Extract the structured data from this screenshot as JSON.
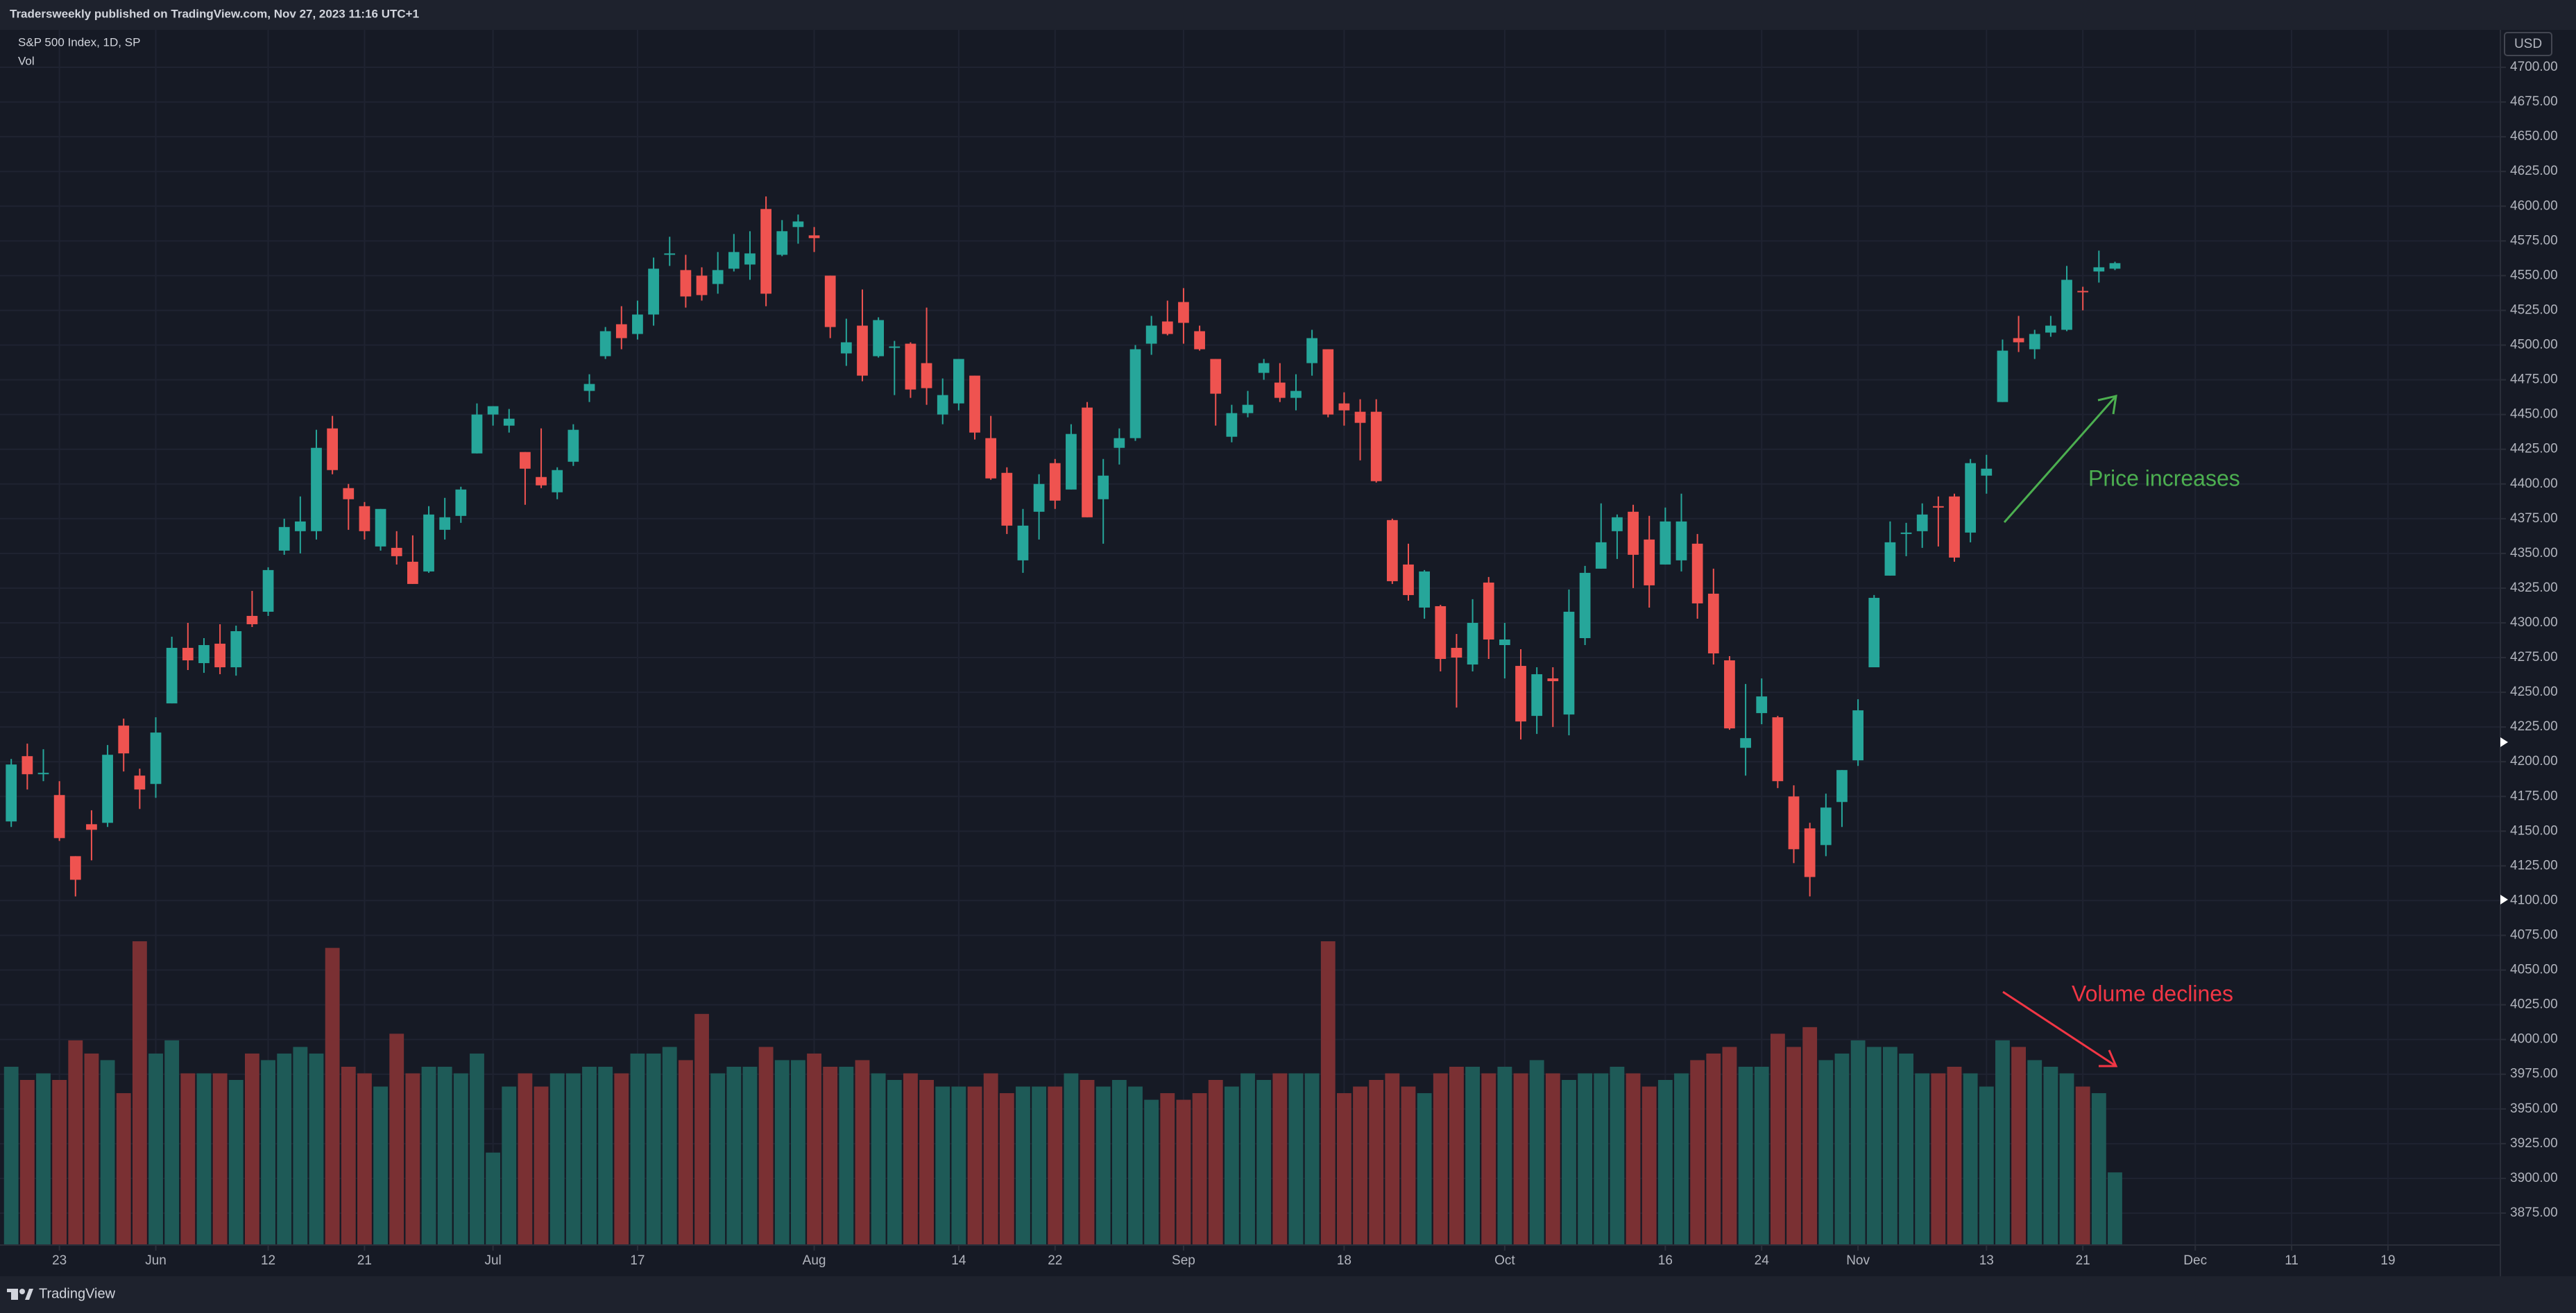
{
  "header": {
    "title": "Tradersweekly published on TradingView.com, Nov 27, 2023 11:16 UTC+1"
  },
  "legend": {
    "symbol": "S&P 500 Index, 1D, SP",
    "indicator": "Vol"
  },
  "currency": "USD",
  "footer": {
    "brand": "TradingView"
  },
  "chart_data": {
    "type": "candlestick",
    "up_color": "#26a69a",
    "down_color": "#ef5350",
    "volume_up_color": "#1e5a57",
    "volume_down_color": "#7a3033",
    "grid": true,
    "ylim": [
      3852,
      4727
    ],
    "yticks": [
      {
        "value": 3875,
        "label": "3875.00"
      },
      {
        "value": 3900,
        "label": "3900.00"
      },
      {
        "value": 3925,
        "label": "3925.00"
      },
      {
        "value": 3950,
        "label": "3950.00"
      },
      {
        "value": 3975,
        "label": "3975.00"
      },
      {
        "value": 4000,
        "label": "4000.00"
      },
      {
        "value": 4025,
        "label": "4025.00"
      },
      {
        "value": 4050,
        "label": "4050.00"
      },
      {
        "value": 4075,
        "label": "4075.00"
      },
      {
        "value": 4100,
        "label": "4100.00"
      },
      {
        "value": 4125,
        "label": "4125.00"
      },
      {
        "value": 4150,
        "label": "4150.00"
      },
      {
        "value": 4175,
        "label": "4175.00"
      },
      {
        "value": 4200,
        "label": "4200.00"
      },
      {
        "value": 4225,
        "label": "4225.00"
      },
      {
        "value": 4250,
        "label": "4250.00"
      },
      {
        "value": 4275,
        "label": "4275.00"
      },
      {
        "value": 4300,
        "label": "4300.00"
      },
      {
        "value": 4325,
        "label": "4325.00"
      },
      {
        "value": 4350,
        "label": "4350.00"
      },
      {
        "value": 4375,
        "label": "4375.00"
      },
      {
        "value": 4400,
        "label": "4400.00"
      },
      {
        "value": 4425,
        "label": "4425.00"
      },
      {
        "value": 4450,
        "label": "4450.00"
      },
      {
        "value": 4475,
        "label": "4475.00"
      },
      {
        "value": 4500,
        "label": "4500.00"
      },
      {
        "value": 4525,
        "label": "4525.00"
      },
      {
        "value": 4550,
        "label": "4550.00"
      },
      {
        "value": 4575,
        "label": "4575.00"
      },
      {
        "value": 4600,
        "label": "4600.00"
      },
      {
        "value": 4625,
        "label": "4625.00"
      },
      {
        "value": 4650,
        "label": "4650.00"
      },
      {
        "value": 4675,
        "label": "4675.00"
      },
      {
        "value": 4700,
        "label": "4700.00"
      }
    ],
    "y2lim": [
      0,
      5
    ],
    "xlim": [
      -0.7,
      155
    ],
    "xticks": [
      {
        "value": 3,
        "label": "23"
      },
      {
        "value": 9,
        "label": "Jun"
      },
      {
        "value": 16,
        "label": "12"
      },
      {
        "value": 22,
        "label": "21"
      },
      {
        "value": 30,
        "label": "Jul"
      },
      {
        "value": 39,
        "label": "17"
      },
      {
        "value": 50,
        "label": "Aug"
      },
      {
        "value": 59,
        "label": "14"
      },
      {
        "value": 65,
        "label": "22"
      },
      {
        "value": 73,
        "label": "Sep"
      },
      {
        "value": 83,
        "label": "18"
      },
      {
        "value": 93,
        "label": "Oct"
      },
      {
        "value": 103,
        "label": "16"
      },
      {
        "value": 109,
        "label": "24"
      },
      {
        "value": 115,
        "label": "Nov"
      },
      {
        "value": 123,
        "label": "13"
      },
      {
        "value": 129,
        "label": "21"
      },
      {
        "value": 136,
        "label": "Dec"
      },
      {
        "value": 142,
        "label": "11"
      },
      {
        "value": 148,
        "label": "19"
      }
    ],
    "annotations": [
      "Price increases",
      "Volume declines"
    ],
    "candles": [
      {
        "open": 4157,
        "high": 4202,
        "low": 4153,
        "close": 4198
      },
      {
        "open": 4204,
        "high": 4213,
        "low": 4180,
        "close": 4191
      },
      {
        "open": 4191,
        "high": 4209,
        "low": 4186,
        "close": 4192
      },
      {
        "open": 4176,
        "high": 4186,
        "low": 4143,
        "close": 4145
      },
      {
        "open": 4132,
        "high": 4132,
        "low": 4103,
        "close": 4115
      },
      {
        "open": 4155,
        "high": 4165,
        "low": 4129,
        "close": 4151
      },
      {
        "open": 4156,
        "high": 4212,
        "low": 4153,
        "close": 4205
      },
      {
        "open": 4226,
        "high": 4231,
        "low": 4193,
        "close": 4206
      },
      {
        "open": 4190,
        "high": 4195,
        "low": 4166,
        "close": 4180
      },
      {
        "open": 4184,
        "high": 4232,
        "low": 4174,
        "close": 4221
      },
      {
        "open": 4242,
        "high": 4290,
        "low": 4242,
        "close": 4282
      },
      {
        "open": 4282,
        "high": 4300,
        "low": 4266,
        "close": 4273
      },
      {
        "open": 4271,
        "high": 4289,
        "low": 4264,
        "close": 4284
      },
      {
        "open": 4285,
        "high": 4299,
        "low": 4263,
        "close": 4268
      },
      {
        "open": 4268,
        "high": 4298,
        "low": 4262,
        "close": 4294
      },
      {
        "open": 4305,
        "high": 4323,
        "low": 4297,
        "close": 4299
      },
      {
        "open": 4308,
        "high": 4340,
        "low": 4305,
        "close": 4338
      },
      {
        "open": 4352,
        "high": 4375,
        "low": 4349,
        "close": 4369
      },
      {
        "open": 4366,
        "high": 4391,
        "low": 4350,
        "close": 4373
      },
      {
        "open": 4366,
        "high": 4439,
        "low": 4360,
        "close": 4426
      },
      {
        "open": 4440,
        "high": 4449,
        "low": 4407,
        "close": 4410
      },
      {
        "open": 4397,
        "high": 4400,
        "low": 4367,
        "close": 4389
      },
      {
        "open": 4384,
        "high": 4387,
        "low": 4360,
        "close": 4366
      },
      {
        "open": 4355,
        "high": 4382,
        "low": 4352,
        "close": 4382
      },
      {
        "open": 4354,
        "high": 4366,
        "low": 4342,
        "close": 4348
      },
      {
        "open": 4344,
        "high": 4363,
        "low": 4328,
        "close": 4328
      },
      {
        "open": 4337,
        "high": 4384,
        "low": 4336,
        "close": 4378
      },
      {
        "open": 4367,
        "high": 4390,
        "low": 4360,
        "close": 4376
      },
      {
        "open": 4377,
        "high": 4398,
        "low": 4372,
        "close": 4396
      },
      {
        "open": 4422,
        "high": 4458,
        "low": 4422,
        "close": 4450
      },
      {
        "open": 4450,
        "high": 4456,
        "low": 4442,
        "close": 4456
      },
      {
        "open": 4442,
        "high": 4454,
        "low": 4437,
        "close": 4447
      },
      {
        "open": 4423,
        "high": 4423,
        "low": 4385,
        "close": 4411
      },
      {
        "open": 4405,
        "high": 4440,
        "low": 4397,
        "close": 4399
      },
      {
        "open": 4394,
        "high": 4412,
        "low": 4389,
        "close": 4410
      },
      {
        "open": 4416,
        "high": 4443,
        "low": 4413,
        "close": 4439
      },
      {
        "open": 4467,
        "high": 4479,
        "low": 4459,
        "close": 4472
      },
      {
        "open": 4492,
        "high": 4513,
        "low": 4490,
        "close": 4510
      },
      {
        "open": 4515,
        "high": 4528,
        "low": 4497,
        "close": 4505
      },
      {
        "open": 4508,
        "high": 4532,
        "low": 4504,
        "close": 4522
      },
      {
        "open": 4522,
        "high": 4563,
        "low": 4514,
        "close": 4555
      },
      {
        "open": 4565,
        "high": 4578,
        "low": 4557,
        "close": 4566
      },
      {
        "open": 4554,
        "high": 4565,
        "low": 4527,
        "close": 4535
      },
      {
        "open": 4550,
        "high": 4556,
        "low": 4532,
        "close": 4536
      },
      {
        "open": 4544,
        "high": 4567,
        "low": 4537,
        "close": 4554
      },
      {
        "open": 4555,
        "high": 4580,
        "low": 4553,
        "close": 4567
      },
      {
        "open": 4558,
        "high": 4582,
        "low": 4547,
        "close": 4566
      },
      {
        "open": 4598,
        "high": 4607,
        "low": 4528,
        "close": 4537
      },
      {
        "open": 4565,
        "high": 4590,
        "low": 4564,
        "close": 4582
      },
      {
        "open": 4585,
        "high": 4594,
        "low": 4573,
        "close": 4589
      },
      {
        "open": 4579,
        "high": 4585,
        "low": 4567,
        "close": 4577
      },
      {
        "open": 4550,
        "high": 4550,
        "low": 4505,
        "close": 4513
      },
      {
        "open": 4494,
        "high": 4519,
        "low": 4485,
        "close": 4502
      },
      {
        "open": 4514,
        "high": 4540,
        "low": 4474,
        "close": 4478
      },
      {
        "open": 4492,
        "high": 4520,
        "low": 4491,
        "close": 4518
      },
      {
        "open": 4498,
        "high": 4503,
        "low": 4464,
        "close": 4499
      },
      {
        "open": 4501,
        "high": 4502,
        "low": 4462,
        "close": 4468
      },
      {
        "open": 4487,
        "high": 4527,
        "low": 4457,
        "close": 4469
      },
      {
        "open": 4450,
        "high": 4476,
        "low": 4443,
        "close": 4464
      },
      {
        "open": 4458,
        "high": 4490,
        "low": 4453,
        "close": 4490
      },
      {
        "open": 4478,
        "high": 4478,
        "low": 4432,
        "close": 4437
      },
      {
        "open": 4433,
        "high": 4449,
        "low": 4403,
        "close": 4404
      },
      {
        "open": 4408,
        "high": 4412,
        "low": 4364,
        "close": 4370
      },
      {
        "open": 4345,
        "high": 4382,
        "low": 4336,
        "close": 4370
      },
      {
        "open": 4380,
        "high": 4407,
        "low": 4360,
        "close": 4400
      },
      {
        "open": 4415,
        "high": 4418,
        "low": 4382,
        "close": 4388
      },
      {
        "open": 4396,
        "high": 4443,
        "low": 4396,
        "close": 4436
      },
      {
        "open": 4455,
        "high": 4459,
        "low": 4376,
        "close": 4376
      },
      {
        "open": 4389,
        "high": 4418,
        "low": 4357,
        "close": 4406
      },
      {
        "open": 4426,
        "high": 4440,
        "low": 4414,
        "close": 4433
      },
      {
        "open": 4433,
        "high": 4500,
        "low": 4431,
        "close": 4497
      },
      {
        "open": 4501,
        "high": 4521,
        "low": 4493,
        "close": 4514
      },
      {
        "open": 4517,
        "high": 4532,
        "low": 4507,
        "close": 4508
      },
      {
        "open": 4531,
        "high": 4541,
        "low": 4501,
        "close": 4516
      },
      {
        "open": 4510,
        "high": 4514,
        "low": 4496,
        "close": 4497
      },
      {
        "open": 4490,
        "high": 4490,
        "low": 4442,
        "close": 4465
      },
      {
        "open": 4434,
        "high": 4457,
        "low": 4430,
        "close": 4451
      },
      {
        "open": 4451,
        "high": 4467,
        "low": 4448,
        "close": 4457
      },
      {
        "open": 4480,
        "high": 4490,
        "low": 4475,
        "close": 4487
      },
      {
        "open": 4473,
        "high": 4487,
        "low": 4459,
        "close": 4462
      },
      {
        "open": 4462,
        "high": 4479,
        "low": 4453,
        "close": 4467
      },
      {
        "open": 4487,
        "high": 4511,
        "low": 4478,
        "close": 4505
      },
      {
        "open": 4497,
        "high": 4497,
        "low": 4448,
        "close": 4450
      },
      {
        "open": 4458,
        "high": 4466,
        "low": 4442,
        "close": 4453
      },
      {
        "open": 4452,
        "high": 4461,
        "low": 4417,
        "close": 4444
      },
      {
        "open": 4452,
        "high": 4461,
        "low": 4401,
        "close": 4402
      },
      {
        "open": 4374,
        "high": 4375,
        "low": 4328,
        "close": 4330
      },
      {
        "open": 4342,
        "high": 4357,
        "low": 4316,
        "close": 4320
      },
      {
        "open": 4311,
        "high": 4338,
        "low": 4303,
        "close": 4337
      },
      {
        "open": 4312,
        "high": 4313,
        "low": 4265,
        "close": 4274
      },
      {
        "open": 4282,
        "high": 4292,
        "low": 4239,
        "close": 4275
      },
      {
        "open": 4270,
        "high": 4317,
        "low": 4265,
        "close": 4300
      },
      {
        "open": 4329,
        "high": 4333,
        "low": 4274,
        "close": 4288
      },
      {
        "open": 4284,
        "high": 4300,
        "low": 4260,
        "close": 4288
      },
      {
        "open": 4269,
        "high": 4281,
        "low": 4216,
        "close": 4229
      },
      {
        "open": 4233,
        "high": 4268,
        "low": 4220,
        "close": 4263
      },
      {
        "open": 4260,
        "high": 4268,
        "low": 4225,
        "close": 4258
      },
      {
        "open": 4234,
        "high": 4324,
        "low": 4219,
        "close": 4308
      },
      {
        "open": 4289,
        "high": 4341,
        "low": 4284,
        "close": 4336
      },
      {
        "open": 4339,
        "high": 4386,
        "low": 4339,
        "close": 4358
      },
      {
        "open": 4366,
        "high": 4378,
        "low": 4346,
        "close": 4376
      },
      {
        "open": 4380,
        "high": 4385,
        "low": 4325,
        "close": 4349
      },
      {
        "open": 4360,
        "high": 4377,
        "low": 4311,
        "close": 4327
      },
      {
        "open": 4342,
        "high": 4383,
        "low": 4342,
        "close": 4373
      },
      {
        "open": 4345,
        "high": 4393,
        "low": 4337,
        "close": 4373
      },
      {
        "open": 4357,
        "high": 4364,
        "low": 4303,
        "close": 4314
      },
      {
        "open": 4321,
        "high": 4339,
        "low": 4270,
        "close": 4278
      },
      {
        "open": 4273,
        "high": 4276,
        "low": 4223,
        "close": 4224
      },
      {
        "open": 4210,
        "high": 4256,
        "low": 4190,
        "close": 4217
      },
      {
        "open": 4235,
        "high": 4260,
        "low": 4227,
        "close": 4247
      },
      {
        "open": 4232,
        "high": 4233,
        "low": 4181,
        "close": 4186
      },
      {
        "open": 4175,
        "high": 4183,
        "low": 4127,
        "close": 4137
      },
      {
        "open": 4152,
        "high": 4156,
        "low": 4103,
        "close": 4117
      },
      {
        "open": 4140,
        "high": 4177,
        "low": 4132,
        "close": 4167
      },
      {
        "open": 4171,
        "high": 4194,
        "low": 4153,
        "close": 4194
      },
      {
        "open": 4201,
        "high": 4245,
        "low": 4197,
        "close": 4237
      },
      {
        "open": 4268,
        "high": 4320,
        "low": 4268,
        "close": 4318
      },
      {
        "open": 4334,
        "high": 4373,
        "low": 4334,
        "close": 4358
      },
      {
        "open": 4364,
        "high": 4372,
        "low": 4348,
        "close": 4365
      },
      {
        "open": 4366,
        "high": 4386,
        "low": 4354,
        "close": 4378
      },
      {
        "open": 4384,
        "high": 4391,
        "low": 4355,
        "close": 4383
      },
      {
        "open": 4391,
        "high": 4393,
        "low": 4344,
        "close": 4347
      },
      {
        "open": 4365,
        "high": 4418,
        "low": 4358,
        "close": 4415
      },
      {
        "open": 4406,
        "high": 4421,
        "low": 4393,
        "close": 4411
      },
      {
        "open": 4459,
        "high": 4504,
        "low": 4459,
        "close": 4496
      },
      {
        "open": 4505,
        "high": 4521,
        "low": 4495,
        "close": 4502
      },
      {
        "open": 4497,
        "high": 4511,
        "low": 4490,
        "close": 4508
      },
      {
        "open": 4509,
        "high": 4521,
        "low": 4506,
        "close": 4514
      },
      {
        "open": 4511,
        "high": 4557,
        "low": 4510,
        "close": 4547
      },
      {
        "open": 4539,
        "high": 4542,
        "low": 4525,
        "close": 4538
      },
      {
        "open": 4553,
        "high": 4568,
        "low": 4545,
        "close": 4556
      },
      {
        "open": 4555,
        "high": 4560,
        "low": 4554,
        "close": 4559
      }
    ],
    "volume": [
      2.7,
      2.5,
      2.6,
      2.5,
      3.1,
      2.9,
      2.8,
      2.3,
      4.6,
      2.9,
      3.1,
      2.6,
      2.6,
      2.6,
      2.5,
      2.9,
      2.8,
      2.9,
      3.0,
      2.9,
      4.5,
      2.7,
      2.6,
      2.4,
      3.2,
      2.6,
      2.7,
      2.7,
      2.6,
      2.9,
      1.4,
      2.4,
      2.6,
      2.4,
      2.6,
      2.6,
      2.7,
      2.7,
      2.6,
      2.9,
      2.9,
      3.0,
      2.8,
      3.5,
      2.6,
      2.7,
      2.7,
      3.0,
      2.8,
      2.8,
      2.9,
      2.7,
      2.7,
      2.8,
      2.6,
      2.5,
      2.6,
      2.5,
      2.4,
      2.4,
      2.4,
      2.6,
      2.3,
      2.4,
      2.4,
      2.4,
      2.6,
      2.5,
      2.4,
      2.5,
      2.4,
      2.2,
      2.3,
      2.2,
      2.3,
      2.5,
      2.4,
      2.6,
      2.5,
      2.6,
      2.6,
      2.6,
      4.6,
      2.3,
      2.4,
      2.5,
      2.6,
      2.4,
      2.3,
      2.6,
      2.7,
      2.7,
      2.6,
      2.7,
      2.6,
      2.8,
      2.6,
      2.5,
      2.6,
      2.6,
      2.7,
      2.6,
      2.4,
      2.5,
      2.6,
      2.8,
      2.9,
      3.0,
      2.7,
      2.7,
      3.2,
      3.0,
      3.3,
      2.8,
      2.9,
      3.1,
      3.0,
      3.0,
      2.9,
      2.6,
      2.6,
      2.7,
      2.6,
      2.4,
      3.1,
      3.0,
      2.8,
      2.7,
      2.6,
      2.4,
      2.3,
      1.1
    ]
  }
}
